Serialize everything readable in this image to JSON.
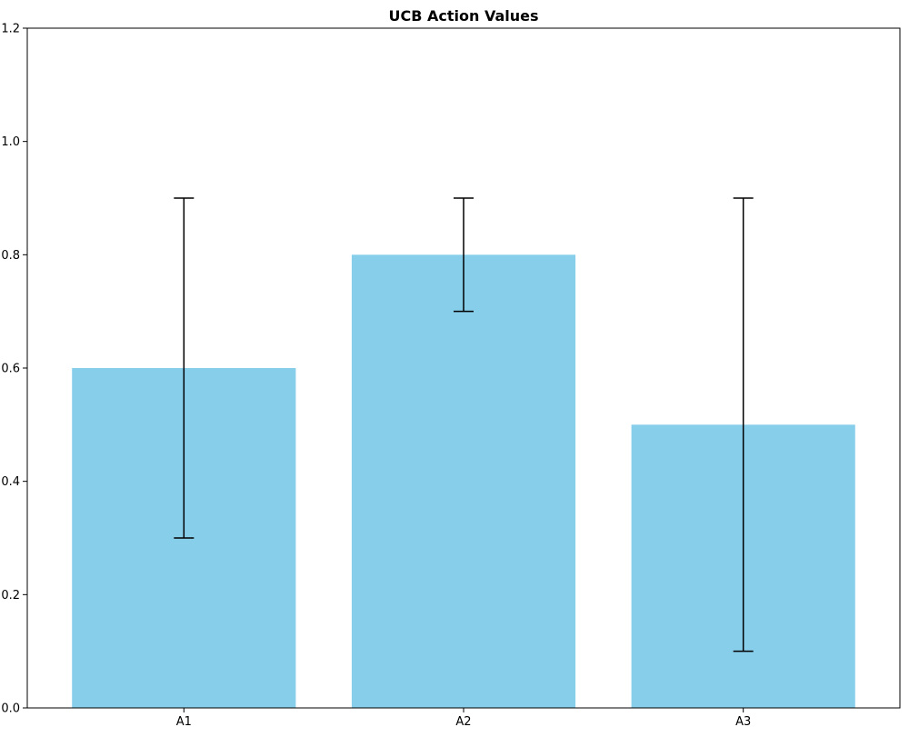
{
  "chart_data": {
    "type": "bar",
    "title": "UCB Action Values",
    "categories": [
      "A1",
      "A2",
      "A3"
    ],
    "values": [
      0.6,
      0.8,
      0.5
    ],
    "errors": [
      0.3,
      0.1,
      0.4
    ],
    "error_upper_bounds": [
      0.9,
      0.9,
      0.9
    ],
    "error_lower_bounds": [
      0.3,
      0.7,
      0.1
    ],
    "bar_color": "#87CEEB",
    "error_color": "#000000",
    "background_color": "#ffffff",
    "xlabel": "",
    "ylabel": "",
    "ylim": [
      0.0,
      1.2
    ],
    "yticks": [
      0.0,
      0.2,
      0.4,
      0.6,
      0.8,
      1.0,
      1.2
    ],
    "grid": false,
    "legend": null
  }
}
